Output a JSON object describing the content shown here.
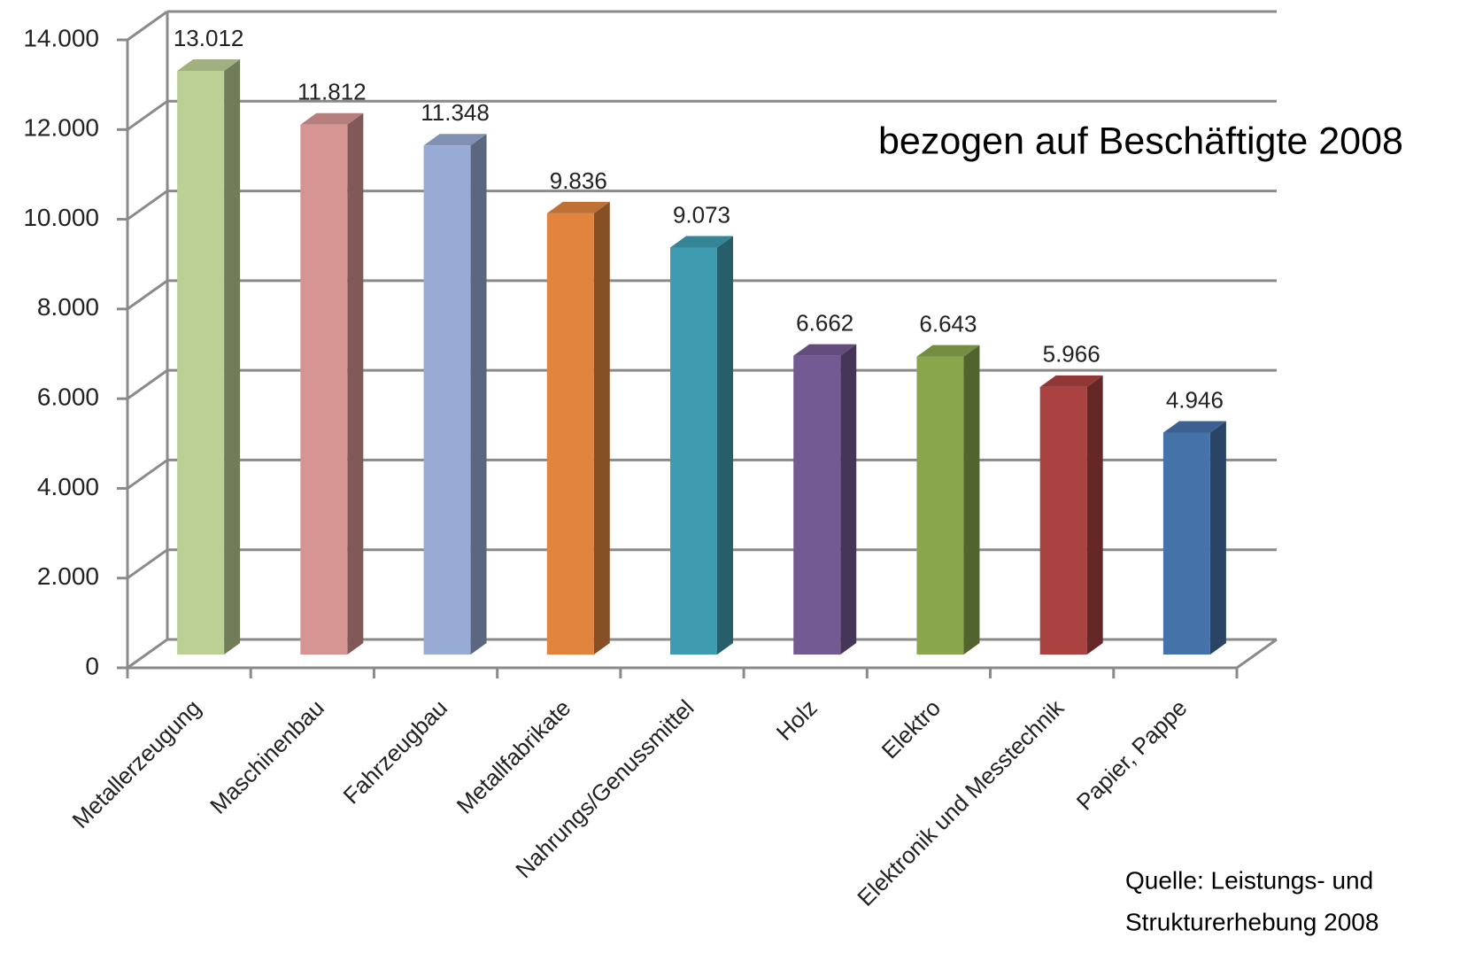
{
  "chart_data": {
    "type": "bar3d",
    "annotation": "bezogen auf Beschäftigte 2008",
    "source": [
      "Quelle: Leistungs- und",
      "Strukturerhebung 2008"
    ],
    "categories": [
      "Metallerzeugung",
      "Maschinenbau",
      "Fahrzeugbau",
      "Metallfabrikate",
      "Nahrungs/Genussmittel",
      "Holz",
      "Elektro",
      "Elektronik und Messtechnik",
      "Papier, Pappe"
    ],
    "values": [
      13012,
      11812,
      11348,
      9836,
      9073,
      6662,
      6643,
      5966,
      4946
    ],
    "value_labels": [
      "13.012",
      "11.812",
      "11.348",
      "9.836",
      "9.073",
      "6.662",
      "6.643",
      "5.966",
      "4.946"
    ],
    "colors": [
      "#bcd095",
      "#d69493",
      "#97abd4",
      "#e0843e",
      "#3f9cb0",
      "#735a92",
      "#88a64b",
      "#aa4241",
      "#4672aa"
    ],
    "ylim": [
      0,
      14000
    ],
    "yticks": [
      0,
      {
        "value": 2000,
        "label": "2.000"
      },
      {
        "value": 4000,
        "label": "4.000"
      },
      {
        "value": 6000,
        "label": "6.000"
      },
      {
        "value": 8000,
        "label": "8.000"
      },
      {
        "value": 10000,
        "label": "10.000"
      },
      {
        "value": 12000,
        "label": "12.000"
      },
      {
        "value": 14000,
        "label": "14.000"
      }
    ],
    "grid": true
  }
}
